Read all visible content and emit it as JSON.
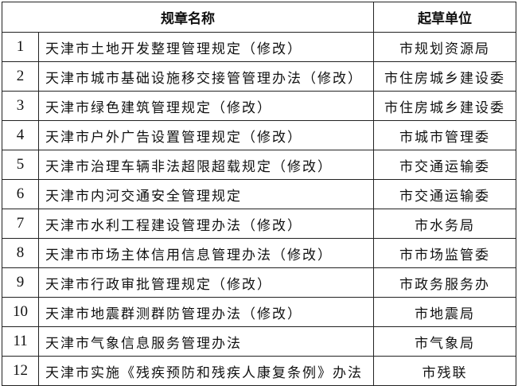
{
  "header": {
    "name": "规章名称",
    "unit": "起草单位"
  },
  "rows": [
    {
      "no": "1",
      "name": "天津市土地开发整理管理规定（修改）",
      "unit": "市规划资源局"
    },
    {
      "no": "2",
      "name": "天津市城市基础设施移交接管管理办法（修改）",
      "unit": "市住房城乡建设委"
    },
    {
      "no": "3",
      "name": "天津市绿色建筑管理规定（修改）",
      "unit": "市住房城乡建设委"
    },
    {
      "no": "4",
      "name": "天津市户外广告设置管理规定（修改）",
      "unit": "市城市管理委"
    },
    {
      "no": "5",
      "name": "天津市治理车辆非法超限超载规定（修改）",
      "unit": "市交通运输委"
    },
    {
      "no": "6",
      "name": "天津市内河交通安全管理规定",
      "unit": "市交通运输委"
    },
    {
      "no": "7",
      "name": "天津市水利工程建设管理办法（修改）",
      "unit": "市水务局"
    },
    {
      "no": "8",
      "name": "天津市市场主体信用信息管理办法（修改）",
      "unit": "市市场监管委"
    },
    {
      "no": "9",
      "name": "天津市行政审批管理规定（修改）",
      "unit": "市政务服务办"
    },
    {
      "no": "10",
      "name": "天津市地震群测群防管理办法（修改）",
      "unit": "市地震局"
    },
    {
      "no": "11",
      "name": "天津市气象信息服务管理办法",
      "unit": "市气象局"
    },
    {
      "no": "12",
      "name": "天津市实施《残疾预防和残疾人康复条例》办法",
      "unit": "市残联"
    }
  ]
}
